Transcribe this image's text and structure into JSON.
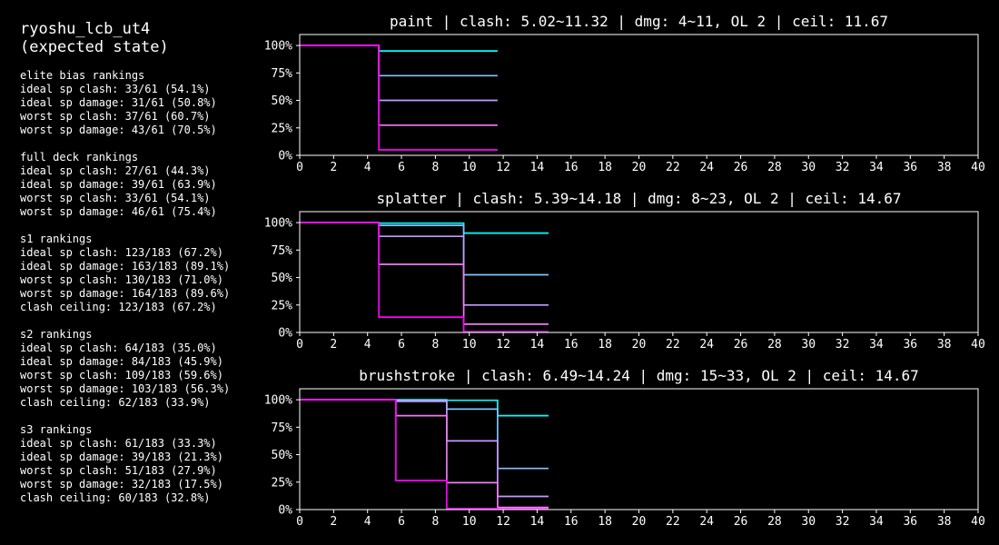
{
  "side_panel": {
    "title": "ryoshu_lcb_ut4\n(expected state)",
    "sections": [
      {
        "heading": "elite bias rankings",
        "lines": [
          "ideal sp clash: 33/61 (54.1%)",
          "ideal sp damage: 31/61 (50.8%)",
          "worst sp clash: 37/61 (60.7%)",
          "worst sp damage: 43/61 (70.5%)"
        ]
      },
      {
        "heading": "full deck rankings",
        "lines": [
          "ideal sp clash: 27/61 (44.3%)",
          "ideal sp damage: 39/61 (63.9%)",
          "worst sp clash: 33/61 (54.1%)",
          "worst sp damage: 46/61 (75.4%)"
        ]
      },
      {
        "heading": "s1 rankings",
        "lines": [
          "ideal sp clash: 123/183 (67.2%)",
          "ideal sp damage: 163/183 (89.1%)",
          "worst sp clash: 130/183 (71.0%)",
          "worst sp damage: 164/183 (89.6%)",
          "clash ceiling: 123/183 (67.2%)"
        ]
      },
      {
        "heading": "s2 rankings",
        "lines": [
          "ideal sp clash: 64/183 (35.0%)",
          "ideal sp damage: 84/183 (45.9%)",
          "worst sp clash: 109/183 (59.6%)",
          "worst sp damage: 103/183 (56.3%)",
          "clash ceiling: 62/183 (33.9%)"
        ]
      },
      {
        "heading": "s3 rankings",
        "lines": [
          "ideal sp clash: 61/183 (33.3%)",
          "ideal sp damage: 39/183 (21.3%)",
          "worst sp clash: 51/183 (27.9%)",
          "worst sp damage: 32/183 (17.5%)",
          "clash ceiling: 60/183 (32.8%)"
        ]
      }
    ]
  },
  "colors": {
    "background": "#000000",
    "axes": "#ffffff",
    "series": [
      "#00ffff",
      "#80c4ff",
      "#c39bff",
      "#f07cf3",
      "#ff00ff"
    ]
  },
  "chart_data": [
    {
      "type": "line",
      "step": true,
      "title": "paint | clash: 5.02~11.32 | dmg: 4~11, OL 2 | ceil: 11.67",
      "xlim": [
        0,
        40
      ],
      "ylim": [
        0,
        110
      ],
      "xticks": [
        0,
        2,
        4,
        6,
        8,
        10,
        12,
        14,
        16,
        18,
        20,
        22,
        24,
        26,
        28,
        30,
        32,
        34,
        36,
        38,
        40
      ],
      "yticks": [
        0,
        25,
        50,
        75,
        100
      ],
      "ytick_labels": [
        "0%",
        "25%",
        "50%",
        "75%",
        "100%"
      ],
      "series": [
        {
          "x": [
            0,
            4.67,
            4.67,
            11.67
          ],
          "y": [
            100,
            100,
            95,
            95
          ]
        },
        {
          "x": [
            0,
            4.67,
            4.67,
            11.67
          ],
          "y": [
            100,
            100,
            72.5,
            72.5
          ]
        },
        {
          "x": [
            0,
            4.67,
            4.67,
            11.67
          ],
          "y": [
            100,
            100,
            50,
            50
          ]
        },
        {
          "x": [
            0,
            4.67,
            4.67,
            11.67
          ],
          "y": [
            100,
            100,
            27.5,
            27.5
          ]
        },
        {
          "x": [
            0,
            4.67,
            4.67,
            11.67
          ],
          "y": [
            100,
            100,
            5,
            5
          ]
        }
      ]
    },
    {
      "type": "line",
      "step": true,
      "title": "splatter | clash: 5.39~14.18 | dmg: 8~23, OL 2 | ceil: 14.67",
      "xlim": [
        0,
        40
      ],
      "ylim": [
        0,
        110
      ],
      "xticks": [
        0,
        2,
        4,
        6,
        8,
        10,
        12,
        14,
        16,
        18,
        20,
        22,
        24,
        26,
        28,
        30,
        32,
        34,
        36,
        38,
        40
      ],
      "yticks": [
        0,
        25,
        50,
        75,
        100
      ],
      "ytick_labels": [
        "0%",
        "25%",
        "50%",
        "75%",
        "100%"
      ],
      "series": [
        {
          "x": [
            0,
            4.67,
            4.67,
            9.67,
            9.67,
            14.67
          ],
          "y": [
            100,
            100,
            99.5,
            99.5,
            90.5,
            90.5
          ]
        },
        {
          "x": [
            0,
            4.67,
            4.67,
            9.67,
            9.67,
            14.67
          ],
          "y": [
            100,
            100,
            97.5,
            97.5,
            52.5,
            52.5
          ]
        },
        {
          "x": [
            0,
            4.67,
            4.67,
            9.67,
            9.67,
            14.67
          ],
          "y": [
            100,
            100,
            87.5,
            87.5,
            25,
            25
          ]
        },
        {
          "x": [
            0,
            4.67,
            4.67,
            9.67,
            9.67,
            14.67
          ],
          "y": [
            100,
            100,
            62,
            62,
            7.5,
            7.5
          ]
        },
        {
          "x": [
            0,
            4.67,
            4.67,
            9.67,
            9.67,
            14.67
          ],
          "y": [
            100,
            100,
            14,
            14,
            0.5,
            0.5
          ]
        }
      ]
    },
    {
      "type": "line",
      "step": true,
      "title": "brushstroke | clash: 6.49~14.24 | dmg: 15~33, OL 2 | ceil: 14.67",
      "xlim": [
        0,
        40
      ],
      "ylim": [
        0,
        110
      ],
      "xticks": [
        0,
        2,
        4,
        6,
        8,
        10,
        12,
        14,
        16,
        18,
        20,
        22,
        24,
        26,
        28,
        30,
        32,
        34,
        36,
        38,
        40
      ],
      "yticks": [
        0,
        25,
        50,
        75,
        100
      ],
      "ytick_labels": [
        "0%",
        "25%",
        "50%",
        "75%",
        "100%"
      ],
      "series": [
        {
          "x": [
            0,
            5.67,
            5.67,
            8.67,
            8.67,
            11.67,
            11.67,
            14.67
          ],
          "y": [
            100,
            100,
            100,
            100,
            99.5,
            99.5,
            85.5,
            85.5
          ]
        },
        {
          "x": [
            0,
            5.67,
            5.67,
            8.67,
            8.67,
            11.67,
            11.67,
            14.67
          ],
          "y": [
            100,
            100,
            99.5,
            99.5,
            91.5,
            91.5,
            37.5,
            37.5
          ]
        },
        {
          "x": [
            0,
            5.67,
            5.67,
            8.67,
            8.67,
            11.67,
            11.67,
            14.67
          ],
          "y": [
            100,
            100,
            98.5,
            98.5,
            62.5,
            62.5,
            12,
            12
          ]
        },
        {
          "x": [
            0,
            5.67,
            5.67,
            8.67,
            8.67,
            11.67,
            11.67,
            14.67
          ],
          "y": [
            100,
            100,
            85.5,
            85.5,
            24.5,
            24.5,
            2,
            2
          ]
        },
        {
          "x": [
            0,
            5.67,
            5.67,
            8.67,
            8.67,
            11.67,
            11.67,
            14.67
          ],
          "y": [
            100,
            100,
            26.5,
            26.5,
            1,
            1,
            0.5,
            0.5
          ]
        }
      ]
    }
  ]
}
